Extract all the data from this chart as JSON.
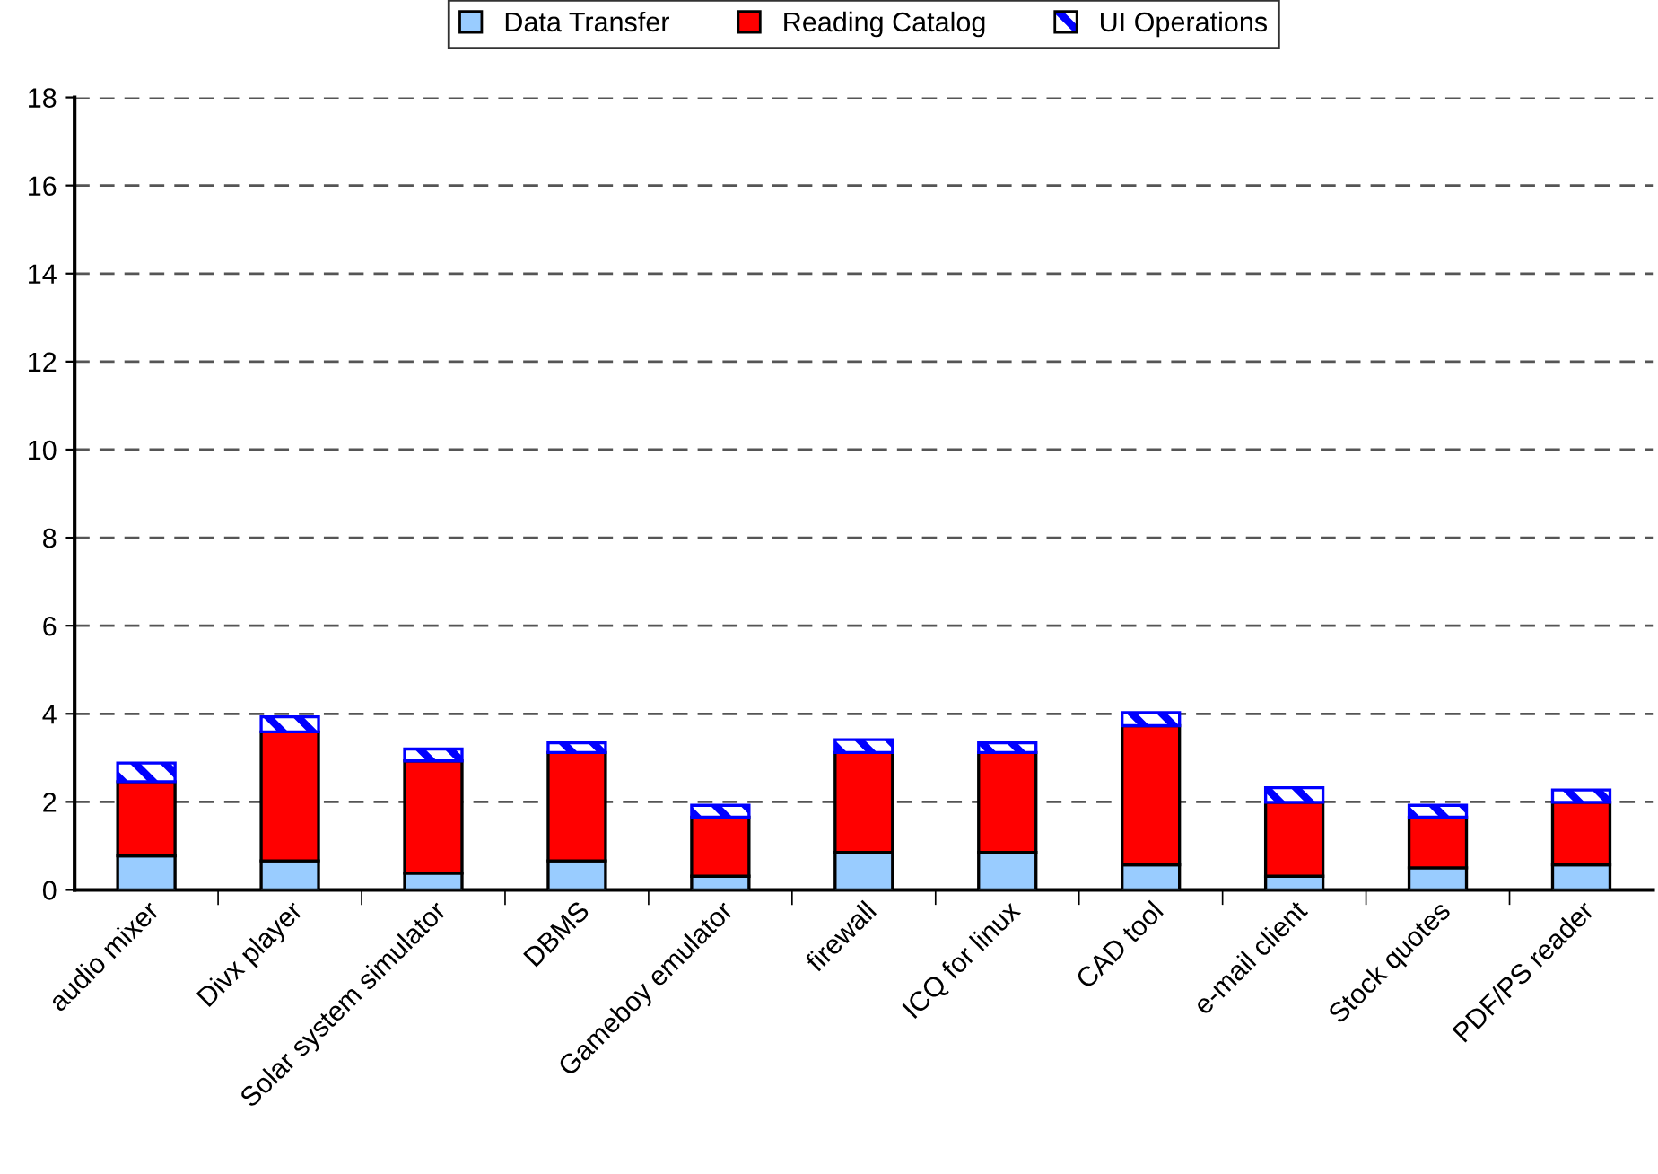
{
  "chart_data": {
    "type": "bar",
    "stacked": true,
    "categories": [
      "audio mixer",
      "Divx player",
      "Solar system simulator",
      "DBMS",
      "Gameboy emulator",
      "firewall",
      "ICQ for linux",
      "CAD tool",
      "e-mail client",
      "Stock quotes",
      "PDF/PS reader"
    ],
    "series": [
      {
        "name": "Data Transfer",
        "color": "#99ccff",
        "values": [
          0.77,
          0.66,
          0.38,
          0.66,
          0.31,
          0.85,
          0.85,
          0.57,
          0.31,
          0.5,
          0.57
        ]
      },
      {
        "name": "Reading Catalog",
        "color": "#ff0000",
        "values": [
          1.69,
          2.93,
          2.55,
          2.46,
          1.34,
          2.27,
          2.27,
          3.16,
          1.68,
          1.15,
          1.42
        ]
      },
      {
        "name": "UI Operations",
        "color": "#0000ff",
        "values": [
          0.42,
          0.34,
          0.27,
          0.22,
          0.27,
          0.29,
          0.22,
          0.3,
          0.33,
          0.27,
          0.28
        ]
      }
    ],
    "ylim": [
      0,
      18
    ],
    "yticks": [
      0,
      2,
      4,
      6,
      8,
      10,
      12,
      14,
      16,
      18
    ],
    "grid": "y",
    "legend": "top"
  }
}
